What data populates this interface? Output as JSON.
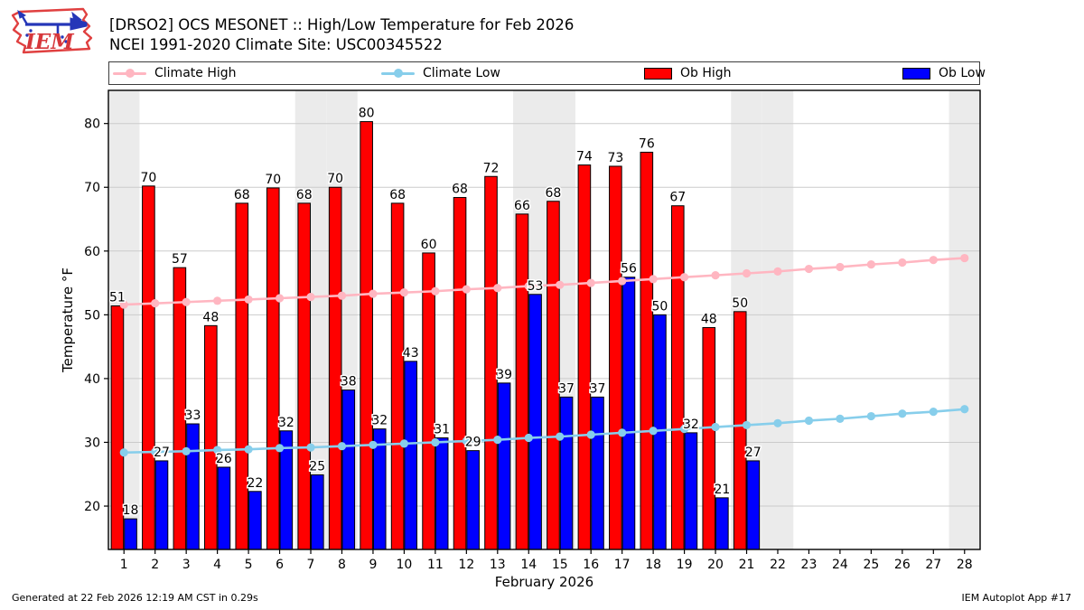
{
  "header": {
    "title_line1": "[DRSO2] OCS MESONET :: High/Low Temperature for Feb 2026",
    "title_line2": "NCEI 1991-2020 Climate Site: USC00345522",
    "logo_text": "IEM"
  },
  "legend": {
    "items": [
      {
        "label": "Climate High",
        "type": "line",
        "color": "#ffb6c1"
      },
      {
        "label": "Climate Low",
        "type": "line",
        "color": "#87ceeb"
      },
      {
        "label": "Ob High",
        "type": "swatch",
        "color": "#ff0000"
      },
      {
        "label": "Ob Low",
        "type": "swatch",
        "color": "#0000ff"
      }
    ]
  },
  "chart_data": {
    "type": "bar",
    "title": "[DRSO2] OCS MESONET :: High/Low Temperature for Feb 2026",
    "xlabel": "February 2026",
    "ylabel": "Temperature °F",
    "categories": [
      "1",
      "2",
      "3",
      "4",
      "5",
      "6",
      "7",
      "8",
      "9",
      "10",
      "11",
      "12",
      "13",
      "14",
      "15",
      "16",
      "17",
      "18",
      "19",
      "20",
      "21",
      "22",
      "23",
      "24",
      "25",
      "26",
      "27",
      "28"
    ],
    "ylim": [
      13.2,
      85.2
    ],
    "yticks": [
      20,
      30,
      40,
      50,
      60,
      70,
      80
    ],
    "grid": "horizontal",
    "legend_position": "top",
    "weekend_shaded_days": [
      1,
      7,
      8,
      14,
      15,
      21,
      22,
      28
    ],
    "weekend_color": "#ebebeb",
    "gridline_color": "#cbcbcb",
    "series": [
      {
        "name": "Ob High",
        "type": "bar",
        "color": "#ff0000",
        "values": [
          51.4,
          70.2,
          57.4,
          48.3,
          67.5,
          69.9,
          67.5,
          70.0,
          80.3,
          67.5,
          59.7,
          68.4,
          71.7,
          65.8,
          67.8,
          73.5,
          73.3,
          75.5,
          67.1,
          48.0,
          50.5,
          null,
          null,
          null,
          null,
          null,
          null,
          null
        ],
        "labels": [
          "51",
          "70",
          "57",
          "48",
          "68",
          "70",
          "68",
          "70",
          "80",
          "68",
          "60",
          "68",
          "72",
          "66",
          "68",
          "74",
          "73",
          "76",
          "67",
          "48",
          "50",
          "",
          "",
          "",
          "",
          "",
          "",
          ""
        ]
      },
      {
        "name": "Ob Low",
        "type": "bar",
        "color": "#0000ff",
        "values": [
          18.0,
          27.1,
          32.9,
          26.1,
          22.3,
          31.8,
          24.9,
          38.2,
          32.1,
          42.7,
          30.7,
          28.7,
          39.3,
          53.2,
          37.1,
          37.1,
          55.9,
          50.0,
          31.5,
          21.3,
          27.1,
          null,
          null,
          null,
          null,
          null,
          null,
          null
        ],
        "labels": [
          "18",
          "27",
          "33",
          "26",
          "22",
          "32",
          "25",
          "38",
          "32",
          "43",
          "31",
          "29",
          "39",
          "53",
          "37",
          "37",
          "56",
          "50",
          "32",
          "21",
          "27",
          "",
          "",
          "",
          "",
          "",
          "",
          ""
        ]
      },
      {
        "name": "Climate High",
        "type": "line",
        "color": "#ffb6c1",
        "values": [
          51.6,
          51.8,
          52.0,
          52.2,
          52.4,
          52.6,
          52.8,
          53.0,
          53.3,
          53.5,
          53.7,
          54.0,
          54.2,
          54.5,
          54.7,
          55.0,
          55.3,
          55.6,
          55.9,
          56.2,
          56.5,
          56.8,
          57.2,
          57.5,
          57.9,
          58.2,
          58.6,
          58.9
        ]
      },
      {
        "name": "Climate Low",
        "type": "line",
        "color": "#87ceeb",
        "values": [
          28.4,
          28.5,
          28.6,
          28.8,
          28.9,
          29.1,
          29.2,
          29.4,
          29.6,
          29.8,
          30.0,
          30.2,
          30.4,
          30.7,
          30.9,
          31.2,
          31.5,
          31.8,
          32.1,
          32.4,
          32.7,
          33.0,
          33.4,
          33.7,
          34.1,
          34.5,
          34.8,
          35.2
        ]
      }
    ]
  },
  "footer": {
    "left": "Generated at 22 Feb 2026 12:19 AM CST in 0.29s",
    "right": "IEM Autoplot App #17"
  }
}
